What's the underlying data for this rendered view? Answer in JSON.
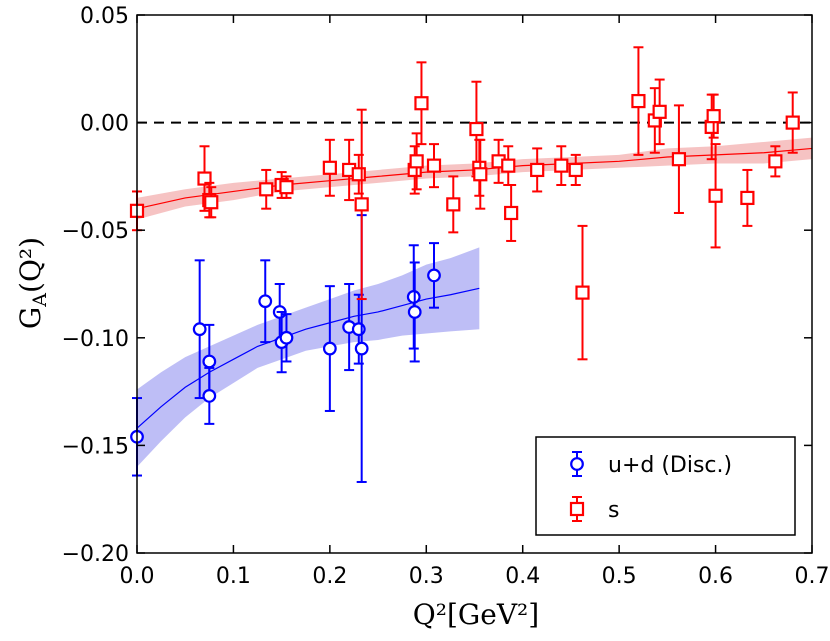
{
  "chart_data": {
    "type": "scatter",
    "title": "",
    "xlabel": "Q²[GeV²]",
    "ylabel": "G_A(Q²)",
    "ylabel_main": "G",
    "ylabel_sub": "A",
    "ylabel_rest": "(Q²)",
    "xlim": [
      0.0,
      0.7
    ],
    "ylim": [
      -0.2,
      0.05
    ],
    "xticks": [
      "0.0",
      "0.1",
      "0.2",
      "0.3",
      "0.4",
      "0.5",
      "0.6",
      "0.7"
    ],
    "yticks": [
      "0.05",
      "0.00",
      "−0.05",
      "−0.10",
      "−0.15",
      "−0.20"
    ],
    "xtick_values": [
      0.0,
      0.1,
      0.2,
      0.3,
      0.4,
      0.5,
      0.6,
      0.7
    ],
    "ytick_values": [
      0.05,
      0.0,
      -0.05,
      -0.1,
      -0.15,
      -0.2
    ],
    "grid": false,
    "legend_position": "bottom-right",
    "reference_line": {
      "y": 0.0,
      "style": "dashed",
      "color": "#000000"
    },
    "series": [
      {
        "name": "u+d (Disc.)",
        "color": "#0000ff",
        "marker": "circle",
        "points": [
          {
            "x": 0.0,
            "y": -0.146,
            "err": 0.018
          },
          {
            "x": 0.065,
            "y": -0.096,
            "err": 0.032
          },
          {
            "x": 0.075,
            "y": -0.111,
            "err": 0.017
          },
          {
            "x": 0.075,
            "y": -0.127,
            "err": 0.013
          },
          {
            "x": 0.133,
            "y": -0.083,
            "err": 0.019
          },
          {
            "x": 0.148,
            "y": -0.088,
            "err": 0.013
          },
          {
            "x": 0.15,
            "y": -0.102,
            "err": 0.014
          },
          {
            "x": 0.155,
            "y": -0.1,
            "err": 0.011
          },
          {
            "x": 0.2,
            "y": -0.105,
            "err": 0.029
          },
          {
            "x": 0.22,
            "y": -0.095,
            "err": 0.02
          },
          {
            "x": 0.23,
            "y": -0.096,
            "err": 0.016
          },
          {
            "x": 0.233,
            "y": -0.105,
            "err": 0.062
          },
          {
            "x": 0.287,
            "y": -0.081,
            "err": 0.024
          },
          {
            "x": 0.288,
            "y": -0.088,
            "err": 0.023
          },
          {
            "x": 0.308,
            "y": -0.071,
            "err": 0.015
          }
        ],
        "fit": {
          "x": [
            0.0,
            0.025,
            0.05,
            0.075,
            0.1,
            0.125,
            0.15,
            0.175,
            0.2,
            0.225,
            0.25,
            0.275,
            0.3,
            0.325,
            0.355
          ],
          "y": [
            -0.142,
            -0.132,
            -0.123,
            -0.116,
            -0.11,
            -0.104,
            -0.1,
            -0.096,
            -0.093,
            -0.09,
            -0.088,
            -0.085,
            -0.082,
            -0.08,
            -0.077
          ],
          "band_half_width": [
            0.018,
            0.016,
            0.014,
            0.012,
            0.011,
            0.01,
            0.01,
            0.01,
            0.011,
            0.012,
            0.013,
            0.014,
            0.016,
            0.017,
            0.019
          ],
          "band_color": "#b3b3f5"
        }
      },
      {
        "name": "s",
        "color": "#ff0000",
        "marker": "square",
        "points": [
          {
            "x": 0.0,
            "y": -0.041,
            "err": 0.009
          },
          {
            "x": 0.07,
            "y": -0.026,
            "err": 0.015
          },
          {
            "x": 0.075,
            "y": -0.036,
            "err": 0.008
          },
          {
            "x": 0.077,
            "y": -0.037,
            "err": 0.007
          },
          {
            "x": 0.134,
            "y": -0.031,
            "err": 0.009
          },
          {
            "x": 0.15,
            "y": -0.029,
            "err": 0.006
          },
          {
            "x": 0.155,
            "y": -0.03,
            "err": 0.005
          },
          {
            "x": 0.2,
            "y": -0.021,
            "err": 0.013
          },
          {
            "x": 0.22,
            "y": -0.022,
            "err": 0.014
          },
          {
            "x": 0.23,
            "y": -0.024,
            "err": 0.009
          },
          {
            "x": 0.233,
            "y": -0.038,
            "err": 0.044
          },
          {
            "x": 0.288,
            "y": -0.022,
            "err": 0.011
          },
          {
            "x": 0.29,
            "y": -0.018,
            "err": 0.013
          },
          {
            "x": 0.295,
            "y": 0.009,
            "err": 0.019
          },
          {
            "x": 0.308,
            "y": -0.02,
            "err": 0.01
          },
          {
            "x": 0.328,
            "y": -0.038,
            "err": 0.013
          },
          {
            "x": 0.352,
            "y": -0.003,
            "err": 0.022
          },
          {
            "x": 0.355,
            "y": -0.021,
            "err": 0.013
          },
          {
            "x": 0.356,
            "y": -0.024,
            "err": 0.016
          },
          {
            "x": 0.375,
            "y": -0.018,
            "err": 0.01
          },
          {
            "x": 0.385,
            "y": -0.02,
            "err": 0.009
          },
          {
            "x": 0.388,
            "y": -0.042,
            "err": 0.013
          },
          {
            "x": 0.415,
            "y": -0.022,
            "err": 0.01
          },
          {
            "x": 0.44,
            "y": -0.02,
            "err": 0.009
          },
          {
            "x": 0.455,
            "y": -0.022,
            "err": 0.007
          },
          {
            "x": 0.462,
            "y": -0.079,
            "err": 0.031
          },
          {
            "x": 0.52,
            "y": 0.01,
            "err": 0.025
          },
          {
            "x": 0.537,
            "y": 0.001,
            "err": 0.015
          },
          {
            "x": 0.542,
            "y": 0.005,
            "err": 0.015
          },
          {
            "x": 0.562,
            "y": -0.017,
            "err": 0.025
          },
          {
            "x": 0.596,
            "y": -0.002,
            "err": 0.015
          },
          {
            "x": 0.598,
            "y": 0.003,
            "err": 0.01
          },
          {
            "x": 0.6,
            "y": -0.034,
            "err": 0.024
          },
          {
            "x": 0.633,
            "y": -0.035,
            "err": 0.013
          },
          {
            "x": 0.662,
            "y": -0.018,
            "err": 0.007
          },
          {
            "x": 0.68,
            "y": 0.0,
            "err": 0.014
          }
        ],
        "fit": {
          "x": [
            0.0,
            0.05,
            0.1,
            0.15,
            0.2,
            0.25,
            0.3,
            0.35,
            0.4,
            0.45,
            0.5,
            0.55,
            0.6,
            0.65,
            0.7
          ],
          "y": [
            -0.04,
            -0.035,
            -0.032,
            -0.029,
            -0.027,
            -0.025,
            -0.023,
            -0.022,
            -0.02,
            -0.019,
            -0.018,
            -0.016,
            -0.015,
            -0.014,
            -0.012
          ],
          "band_half_width": [
            0.005,
            0.004,
            0.004,
            0.003,
            0.003,
            0.003,
            0.003,
            0.003,
            0.003,
            0.003,
            0.003,
            0.004,
            0.004,
            0.005,
            0.005
          ],
          "band_color": "#f5b8b8"
        }
      }
    ],
    "legend": [
      "u+d (Disc.)",
      "s"
    ]
  }
}
